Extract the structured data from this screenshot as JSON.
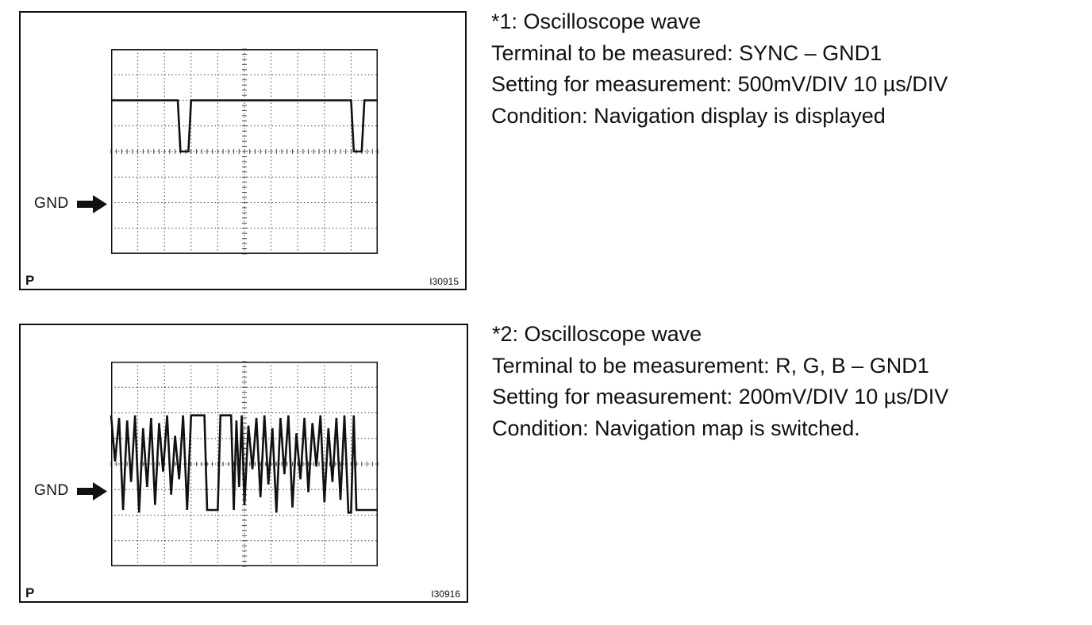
{
  "figures": [
    {
      "panel_letter": "P",
      "figure_code": "I30915",
      "gnd_label": "GND",
      "heading": "*1: Oscilloscope wave",
      "terminal": "Terminal to be measured: SYNC – GND1",
      "setting": "Setting for measurement: 500mV/DIV 10 µs/DIV",
      "condition": "Condition: Navigation display is displayed",
      "chart_data": {
        "type": "line",
        "grid": "10 x 8 divisions, dotted",
        "x_divisions": 10,
        "y_divisions": 8,
        "ground_level_div": 6,
        "series": [
          {
            "x": [
              0,
              2.5,
              2.6,
              2.9,
              3.0,
              9.0,
              9.1,
              9.4,
              9.5,
              10
            ],
            "y": [
              2,
              2,
              4,
              4,
              2,
              2,
              4,
              4,
              2,
              2
            ]
          }
        ]
      }
    },
    {
      "panel_letter": "P",
      "figure_code": "I30916",
      "gnd_label": "GND",
      "heading": "*2: Oscilloscope wave",
      "terminal": "Terminal to be measurement: R, G, B – GND1",
      "setting": "Setting for measurement: 200mV/DIV 10 µs/DIV",
      "condition": "Condition: Navigation map is switched.",
      "chart_data": {
        "type": "line",
        "grid": "10 x 8 divisions, dotted",
        "x_divisions": 10,
        "y_divisions": 8,
        "ground_level_div": 5,
        "series": [
          {
            "x": [
              0,
              0.15,
              0.3,
              0.45,
              0.6,
              0.75,
              0.9,
              1.05,
              1.2,
              1.35,
              1.5,
              1.65,
              1.8,
              1.95,
              2.1,
              2.25,
              2.4,
              2.55,
              2.7,
              2.85,
              3.0,
              3.1,
              3.5,
              3.6,
              4.0,
              4.1,
              4.5,
              4.6,
              4.7,
              4.8,
              4.9,
              5.0,
              5.15,
              5.3,
              5.45,
              5.6,
              5.75,
              5.9,
              6.05,
              6.2,
              6.35,
              6.5,
              6.65,
              6.8,
              6.95,
              7.1,
              7.25,
              7.4,
              7.55,
              7.7,
              7.85,
              8.0,
              8.15,
              8.3,
              8.45,
              8.6,
              8.75,
              8.9,
              9.0,
              9.1,
              9.2,
              9.3,
              10
            ],
            "y": [
              2.1,
              3.9,
              2.2,
              5.8,
              2.3,
              4.7,
              2.1,
              5.9,
              2.6,
              4.9,
              2.2,
              5.6,
              2.4,
              4.3,
              2.1,
              5.2,
              2.9,
              4.6,
              2.1,
              5.8,
              2.1,
              2.1,
              2.1,
              5.8,
              5.8,
              2.1,
              2.1,
              5.8,
              2.3,
              4.9,
              2.1,
              5.6,
              2.5,
              4.2,
              2.2,
              5.3,
              2.1,
              4.8,
              2.6,
              5.9,
              2.2,
              4.4,
              2.1,
              5.7,
              2.8,
              4.6,
              2.2,
              5.1,
              2.4,
              4.1,
              2.1,
              5.5,
              2.6,
              4.7,
              2.2,
              5.4,
              2.1,
              5.9,
              5.9,
              2.1,
              5.8,
              5.8,
              5.8
            ]
          }
        ]
      }
    }
  ],
  "colors": {
    "ink": "#111111",
    "grid": "#444444",
    "background": "#ffffff"
  }
}
